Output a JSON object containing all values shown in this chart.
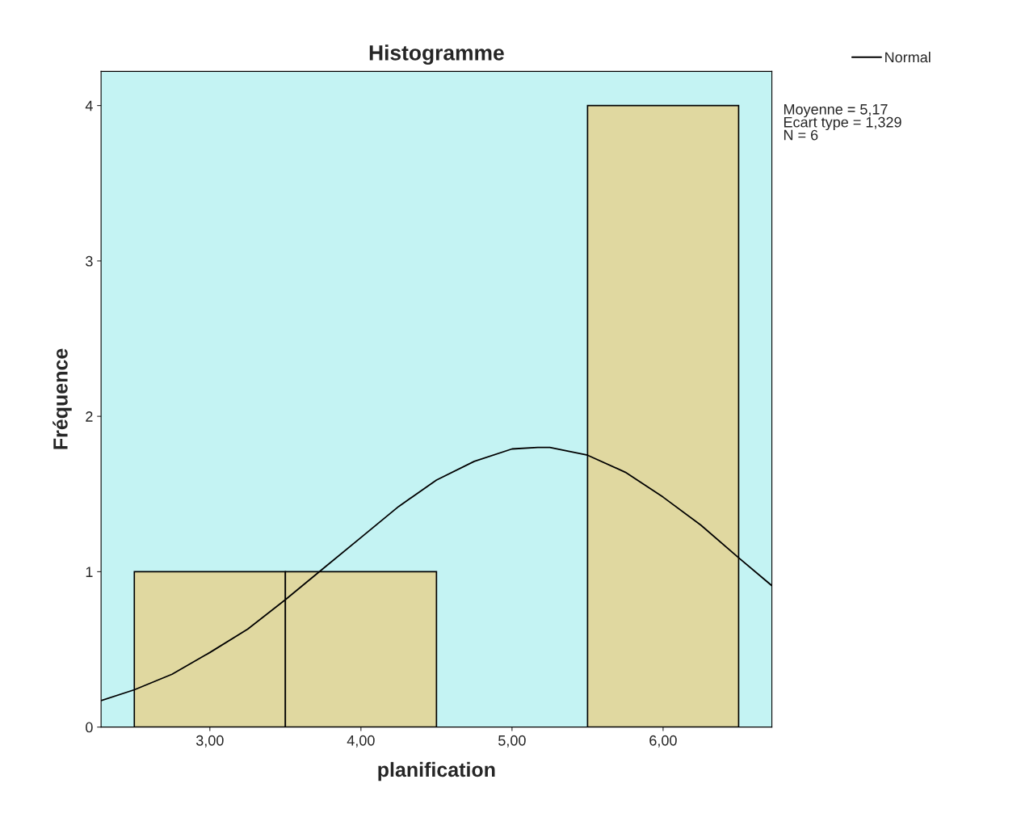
{
  "chart_data": {
    "type": "histogram",
    "title": "Histogramme",
    "xlabel": "planification",
    "ylabel": "Fréquence",
    "bins": [
      2.5,
      3.5,
      4.5,
      5.5,
      6.5
    ],
    "values": [
      1,
      1,
      0,
      4
    ],
    "color": "#e0d8a0",
    "series": [
      {
        "type": "line",
        "name": "Normal",
        "color": "#000000",
        "x": [
          2.28,
          2.5,
          2.75,
          3.0,
          3.25,
          3.5,
          3.75,
          4.0,
          4.25,
          4.5,
          4.75,
          5.0,
          5.17,
          5.25,
          5.5,
          5.75,
          6.0,
          6.25,
          6.5,
          6.72
        ],
        "values": [
          0.17,
          0.24,
          0.34,
          0.48,
          0.63,
          0.82,
          1.02,
          1.22,
          1.42,
          1.59,
          1.71,
          1.79,
          1.8,
          1.8,
          1.75,
          1.64,
          1.48,
          1.3,
          1.09,
          0.91
        ]
      }
    ],
    "xlim": [
      2.28,
      6.72
    ],
    "xticks": [
      {
        "value": 3,
        "label": "3,00"
      },
      {
        "value": 4,
        "label": "4,00"
      },
      {
        "value": 5,
        "label": "5,00"
      },
      {
        "value": 6,
        "label": "6,00"
      }
    ],
    "ylim": [
      0,
      4.22
    ],
    "yticks": [
      0,
      1,
      2,
      3,
      4
    ],
    "annotations": [
      "Moyenne = 5,17",
      "Ecart type = 1,329",
      "N = 6"
    ],
    "legend": "top right",
    "grid": false
  }
}
